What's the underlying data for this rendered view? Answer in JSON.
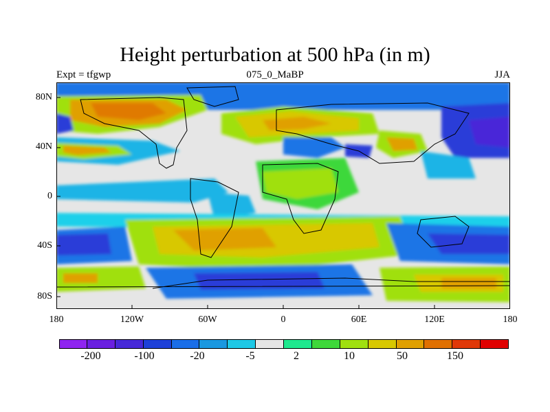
{
  "title": "Height perturbation at 500 hPa (in m)",
  "subtitle_left": "Expt = tfgwp",
  "subtitle_center": "075_0_MaBP",
  "subtitle_right": "JJA",
  "y_ticks": [
    "80N",
    "40N",
    "0",
    "40S",
    "80S"
  ],
  "x_ticks": [
    "180",
    "120W",
    "60W",
    "0",
    "60E",
    "120E",
    "180"
  ],
  "colorbar": {
    "colors": [
      "#8f24f0",
      "#6a1fe0",
      "#4728d8",
      "#1e40d8",
      "#1a6ee8",
      "#1a98e0",
      "#1ec8e6",
      "#e6e6e6",
      "#1ee88e",
      "#3ed83a",
      "#a0e010",
      "#d8c800",
      "#e0a000",
      "#e07000",
      "#e03808",
      "#e00000"
    ],
    "labels": [
      "-200",
      "-100",
      "-20",
      "-5",
      "2",
      "10",
      "50",
      "150"
    ]
  },
  "map_colors": {
    "neutral": "#e6e6e6",
    "deep_blue": "#2a3ed8",
    "blue": "#1a74e6",
    "light_blue": "#1ab4e6",
    "cyan": "#1ed0ea",
    "green": "#3ed83a",
    "light_green": "#a0e010",
    "yellow": "#d8c800",
    "orange": "#e0a000",
    "dark_orange": "#e07a00",
    "purple_blue": "#4a28d8"
  }
}
